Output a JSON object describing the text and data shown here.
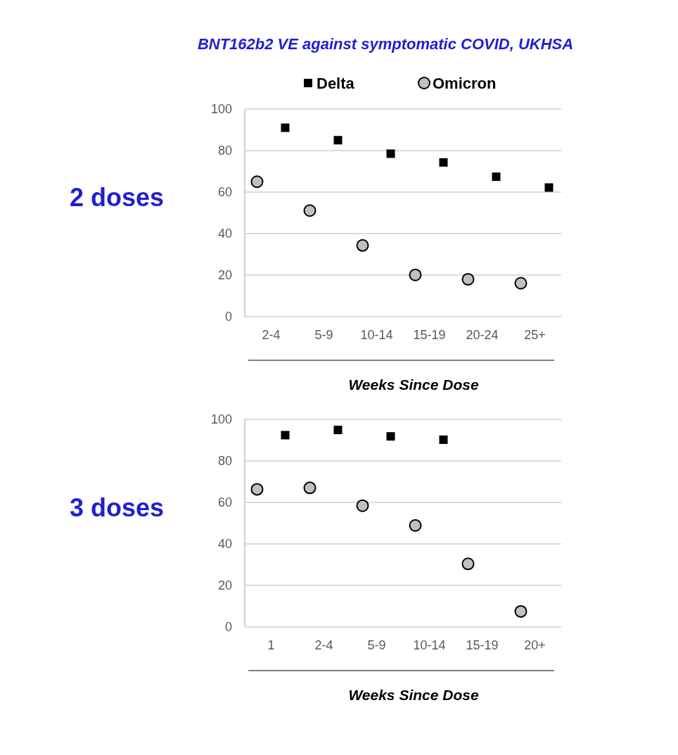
{
  "chart_data": [
    {
      "type": "scatter",
      "title": "BNT162b2 VE against symptomatic COVID, UKHSA",
      "ylabel": "2 doses",
      "xlabel": "Weeks Since Dose",
      "categories": [
        "2-4",
        "5-9",
        "10-14",
        "15-19",
        "20-24",
        "25+"
      ],
      "ylim": [
        0,
        100
      ],
      "yticks": [
        0,
        20,
        40,
        60,
        80,
        100
      ],
      "grid": "y",
      "legend": "top",
      "series": [
        {
          "name": "Delta",
          "color": "#000000",
          "marker": "square",
          "values": [
            91,
            85,
            78.5,
            74.3,
            67.4,
            62.2
          ]
        },
        {
          "name": "Omicron",
          "color": "#c0c0c0",
          "marker": "circle",
          "values": [
            65,
            51.1,
            34.3,
            20.1,
            18,
            16.1
          ]
        }
      ]
    },
    {
      "type": "scatter",
      "ylabel": "3 doses",
      "xlabel": "Weeks Since Dose",
      "categories": [
        "1",
        "2-4",
        "5-9",
        "10-14",
        "15-19",
        "20+"
      ],
      "ylim": [
        0,
        100
      ],
      "yticks": [
        0,
        20,
        40,
        60,
        80,
        100
      ],
      "grid": "y",
      "series": [
        {
          "color": "#000000",
          "marker": "square",
          "values": [
            92.4,
            94.9,
            91.8,
            90.2,
            null,
            null
          ]
        },
        {
          "color": "#c0c0c0",
          "marker": "circle",
          "values": [
            66.3,
            67,
            58.4,
            48.9,
            30.4,
            7.5
          ]
        }
      ]
    }
  ]
}
